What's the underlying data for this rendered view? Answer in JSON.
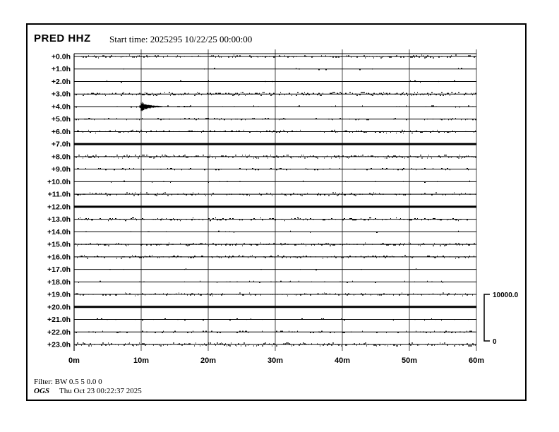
{
  "header": {
    "station_label": "PRED HHZ",
    "start_time_label": "Start time: 2025295 10/22/25 00:00:00"
  },
  "footer": {
    "filter_label": "Filter: BW 0.5 5 0.0 0",
    "agency_label": "OGS",
    "generated_label": "Thu Oct 23 00:22:37 2025"
  },
  "chart_data": {
    "type": "line",
    "title": "PRED HHZ 24-hour helicorder, start 2025295 10/22/25 00:00:00",
    "x_axis": {
      "tick_labels": [
        "0m",
        "10m",
        "20m",
        "30m",
        "40m",
        "50m",
        "60m"
      ],
      "minutes_per_division": 10,
      "minutes_per_row": 60,
      "grid": true
    },
    "y_axis": {
      "row_labels": [
        "+0.0h",
        "+1.0h",
        "+2.0h",
        "+3.0h",
        "+4.0h",
        "+5.0h",
        "+6.0h",
        "+7.0h",
        "+8.0h",
        "+9.0h",
        "+10.0h",
        "+11.0h",
        "+12.0h",
        "+13.0h",
        "+14.0h",
        "+15.0h",
        "+16.0h",
        "+17.0h",
        "+18.0h",
        "+19.0h",
        "+20.0h",
        "+21.0h",
        "+22.0h",
        "+23.0h"
      ]
    },
    "amplitude_scale": {
      "max_label": "10000.0",
      "min_label": "0",
      "max_value": 10000.0,
      "min_value": 0
    },
    "rows": [
      {
        "label": "+0.0h",
        "noise": "noisy"
      },
      {
        "label": "+1.0h",
        "noise": "quiet"
      },
      {
        "label": "+2.0h",
        "noise": "quiet"
      },
      {
        "label": "+3.0h",
        "noise": "heavy"
      },
      {
        "label": "+4.0h",
        "noise": "light"
      },
      {
        "label": "+5.0h",
        "noise": "medium"
      },
      {
        "label": "+6.0h",
        "noise": "noisy"
      },
      {
        "label": "+7.0h",
        "noise": "solid"
      },
      {
        "label": "+8.0h",
        "noise": "heavy"
      },
      {
        "label": "+9.0h",
        "noise": "medium"
      },
      {
        "label": "+10.0h",
        "noise": "quiet"
      },
      {
        "label": "+11.0h",
        "noise": "noisy"
      },
      {
        "label": "+12.0h",
        "noise": "solid"
      },
      {
        "label": "+13.0h",
        "noise": "noisy"
      },
      {
        "label": "+14.0h",
        "noise": "quiet"
      },
      {
        "label": "+15.0h",
        "noise": "noisy"
      },
      {
        "label": "+16.0h",
        "noise": "noisy"
      },
      {
        "label": "+17.0h",
        "noise": "quiet"
      },
      {
        "label": "+18.0h",
        "noise": "light"
      },
      {
        "label": "+19.0h",
        "noise": "noisy"
      },
      {
        "label": "+20.0h",
        "noise": "solid"
      },
      {
        "label": "+21.0h",
        "noise": "light"
      },
      {
        "label": "+22.0h",
        "noise": "medium"
      },
      {
        "label": "+23.0h",
        "noise": "heavy"
      }
    ],
    "event": {
      "row_label": "+4.0h",
      "row_index": 4,
      "start_minute": 10,
      "approx_duration_minutes": 6,
      "shape": "impulsive onset with decaying coda"
    },
    "colors": {
      "trace": "#000000",
      "grid": "#9a9a9a",
      "axis": "#000000",
      "background": "#ffffff"
    }
  }
}
